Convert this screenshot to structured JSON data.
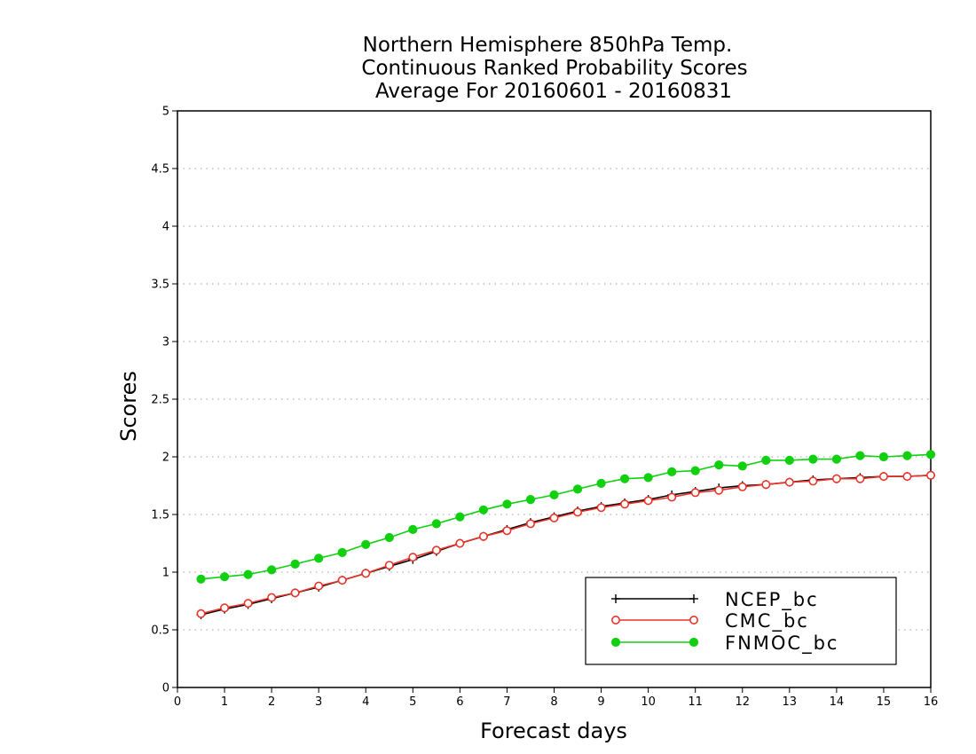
{
  "chart_data": {
    "type": "line",
    "title_lines": [
      "Northern Hemisphere 850hPa Temp.",
      "Continuous Ranked Probability Scores",
      "Average For 20160601 - 20160831"
    ],
    "xlabel": "Forecast days",
    "ylabel": "Scores",
    "xlim": [
      0,
      16
    ],
    "ylim": [
      0,
      5
    ],
    "x_ticks": [
      0,
      1,
      2,
      3,
      4,
      5,
      6,
      7,
      8,
      9,
      10,
      11,
      12,
      13,
      14,
      15,
      16
    ],
    "y_ticks": [
      0,
      0.5,
      1,
      1.5,
      2,
      2.5,
      3,
      3.5,
      4,
      4.5,
      5
    ],
    "y_tick_labels": [
      "0",
      "0.5",
      "1",
      "1.5",
      "2",
      "2.5",
      "3",
      "3.5",
      "4",
      "4.5",
      "5"
    ],
    "grid": "horizontal dotted",
    "legend_position": "bottom-right",
    "x": [
      0.5,
      1,
      1.5,
      2,
      2.5,
      3,
      3.5,
      4,
      4.5,
      5,
      5.5,
      6,
      6.5,
      7,
      7.5,
      8,
      8.5,
      9,
      9.5,
      10,
      10.5,
      11,
      11.5,
      12,
      12.5,
      13,
      13.5,
      14,
      14.5,
      15,
      15.5,
      16
    ],
    "series": [
      {
        "name": "NCEP_bc",
        "color": "#000000",
        "marker": "plus",
        "values": [
          0.63,
          0.68,
          0.72,
          0.77,
          0.82,
          0.87,
          0.93,
          0.99,
          1.05,
          1.11,
          1.18,
          1.25,
          1.31,
          1.37,
          1.43,
          1.48,
          1.53,
          1.57,
          1.6,
          1.63,
          1.67,
          1.7,
          1.73,
          1.75,
          1.76,
          1.78,
          1.8,
          1.81,
          1.82,
          1.83,
          1.83,
          1.84
        ]
      },
      {
        "name": "CMC_bc",
        "color": "#e8342a",
        "marker": "open-circle",
        "values": [
          0.64,
          0.69,
          0.73,
          0.78,
          0.82,
          0.88,
          0.93,
          0.99,
          1.06,
          1.13,
          1.19,
          1.25,
          1.31,
          1.36,
          1.42,
          1.47,
          1.52,
          1.56,
          1.59,
          1.62,
          1.65,
          1.69,
          1.71,
          1.74,
          1.76,
          1.78,
          1.79,
          1.81,
          1.81,
          1.83,
          1.83,
          1.84
        ]
      },
      {
        "name": "FNMOC_bc",
        "color": "#10d010",
        "marker": "filled-circle",
        "values": [
          0.94,
          0.96,
          0.98,
          1.02,
          1.07,
          1.12,
          1.17,
          1.24,
          1.3,
          1.37,
          1.42,
          1.48,
          1.54,
          1.59,
          1.63,
          1.67,
          1.72,
          1.77,
          1.81,
          1.82,
          1.87,
          1.88,
          1.93,
          1.92,
          1.97,
          1.97,
          1.98,
          1.98,
          2.01,
          2.0,
          2.01,
          2.02
        ]
      }
    ]
  }
}
